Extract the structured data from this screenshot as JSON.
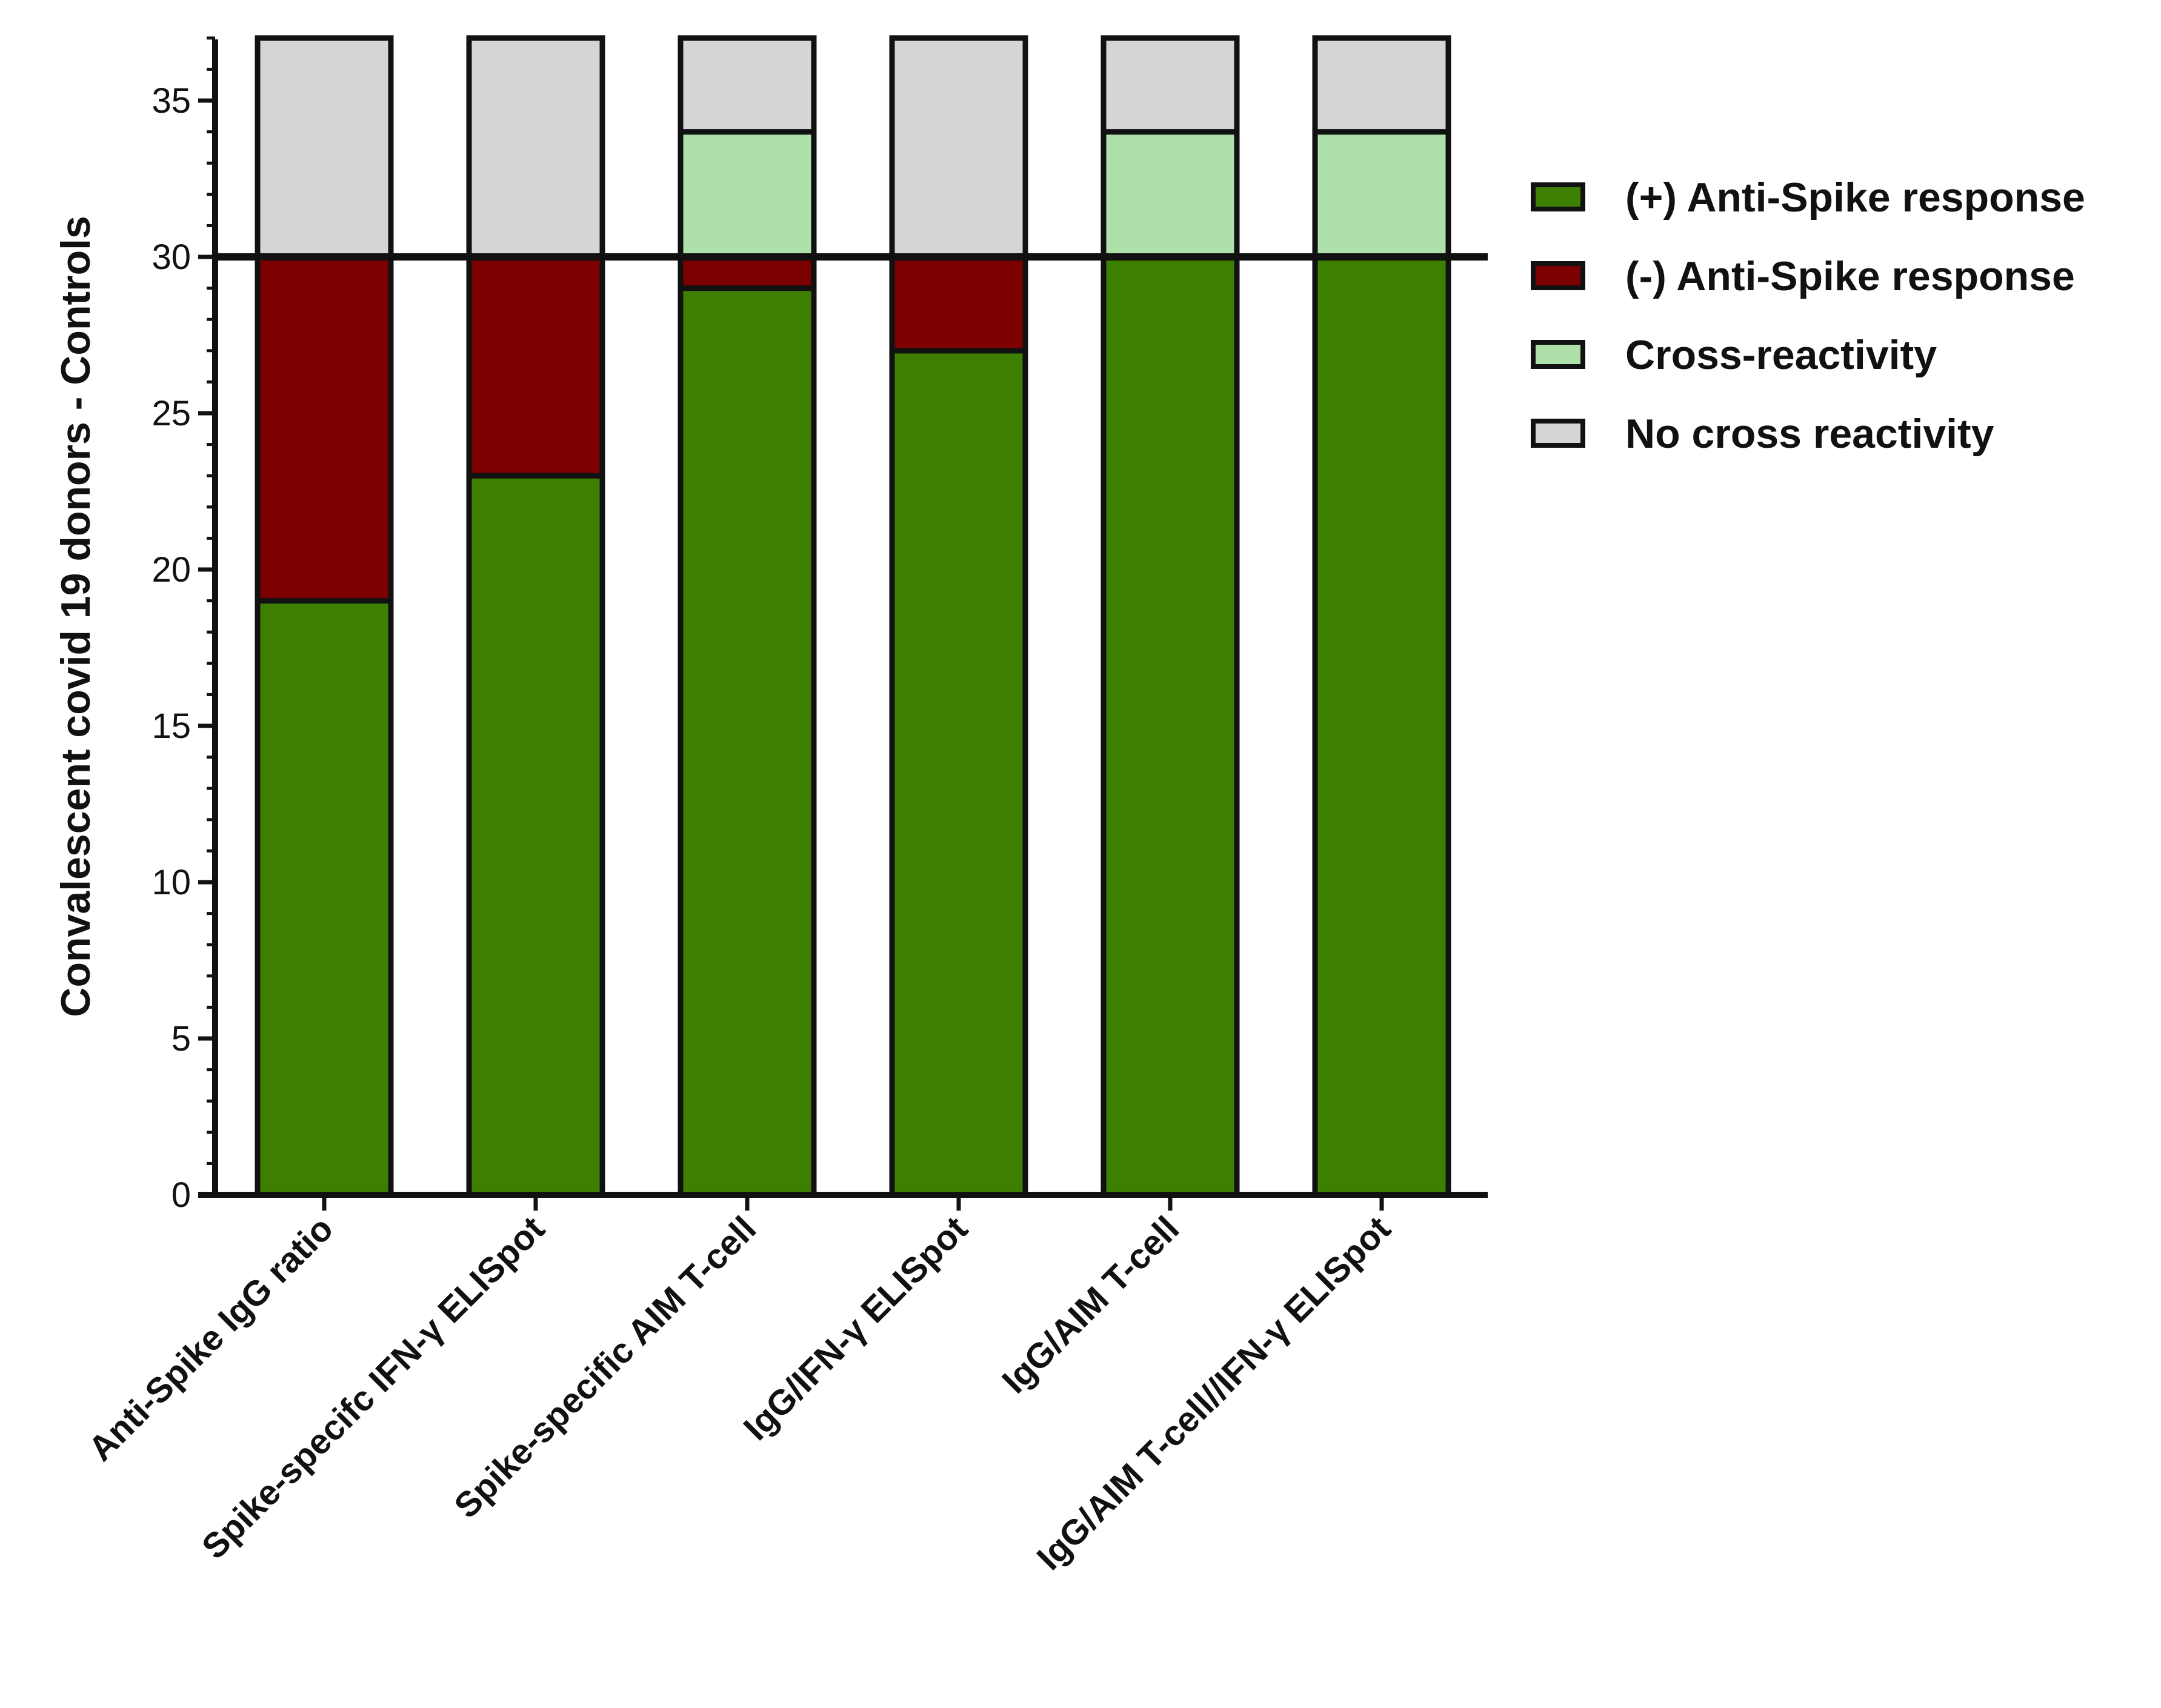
{
  "chart_data": {
    "type": "bar",
    "stacked": true,
    "title": "",
    "xlabel": "",
    "ylabel": "Convalescent covid 19 donors - Controls",
    "ylim": [
      0,
      37
    ],
    "yticks": [
      "0",
      "5",
      "10",
      "15",
      "20",
      "25",
      "30",
      "35"
    ],
    "ytick_values": [
      0,
      5,
      10,
      15,
      20,
      25,
      30,
      35
    ],
    "reference_line": 30,
    "grid": false,
    "legend_position": "right",
    "categories": [
      "Anti-Spike IgG ratio",
      "Spike-specifc IFN-γ ELISpot",
      "Spike-specific AIM T-cell",
      "IgG/IFN-γ ELISpot",
      "IgG/AIM T-cell",
      "IgG/AIM T-cell//IFN-γ ELISpot"
    ],
    "series": [
      {
        "name": "(+) Anti-Spike response",
        "color": "#3d7f00",
        "values": [
          19,
          23,
          29,
          27,
          30,
          30
        ]
      },
      {
        "name": "(-) Anti-Spike response",
        "color": "#7d0000",
        "values": [
          11,
          7,
          1,
          3,
          0,
          0
        ]
      },
      {
        "name": "Cross-reactivity",
        "color": "#aee0a9",
        "values": [
          0,
          0,
          4,
          0,
          4,
          4
        ]
      },
      {
        "name": "No cross reactivity",
        "color": "#d5d5d5",
        "values": [
          7,
          7,
          3,
          7,
          3,
          3
        ]
      }
    ]
  }
}
